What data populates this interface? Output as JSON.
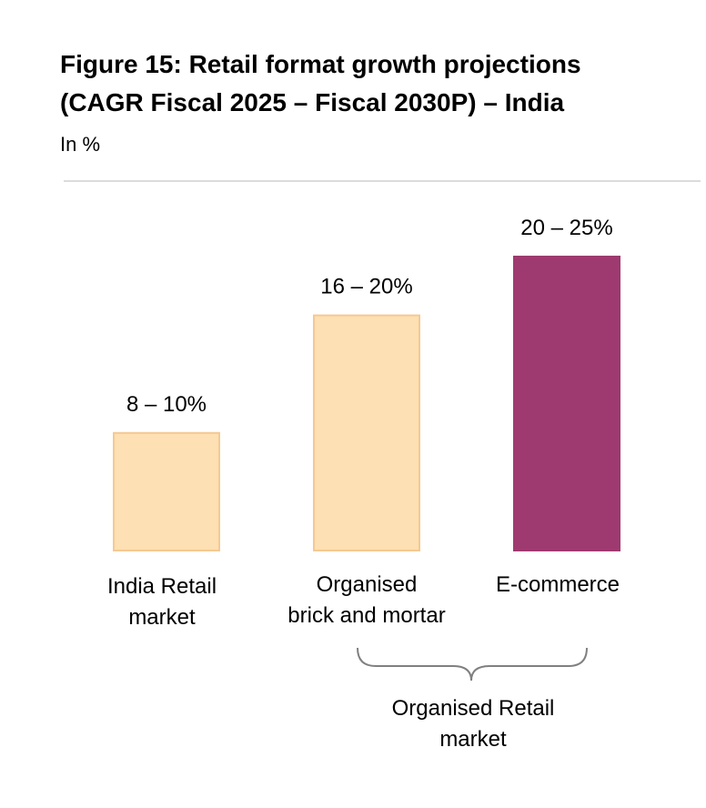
{
  "title_lines": [
    "Figure 15: Retail format growth projections",
    "(CAGR Fiscal 2025 – Fiscal 2030P) – India"
  ],
  "subtitle": "In %",
  "chart_data": {
    "type": "bar",
    "title": "Figure 15: Retail format growth projections (CAGR Fiscal 2025 – Fiscal 2030P) – India",
    "ylabel": "In %",
    "xlabel": "",
    "categories": [
      "India Retail market",
      "Organised brick and mortar",
      "E-commerce"
    ],
    "category_lines": [
      [
        "India Retail",
        "market"
      ],
      [
        "Organised",
        "brick and mortar"
      ],
      [
        "E-commerce"
      ]
    ],
    "values": [
      10,
      20,
      25
    ],
    "ranges": [
      [
        8,
        10
      ],
      [
        16,
        20
      ],
      [
        20,
        25
      ]
    ],
    "data_labels": [
      "8 – 10%",
      "16 – 20%",
      "20 – 25%"
    ],
    "colors": [
      "#fde0b3",
      "#fde0b3",
      "#9e3a6f"
    ],
    "border_colors": [
      "#f5c992",
      "#f5c992",
      "#9e3a6f"
    ],
    "ylim": [
      0,
      25
    ],
    "grid": false,
    "group": {
      "label_lines": [
        "Organised Retail",
        "market"
      ],
      "spans": [
        "Organised brick and mortar",
        "E-commerce"
      ]
    }
  }
}
